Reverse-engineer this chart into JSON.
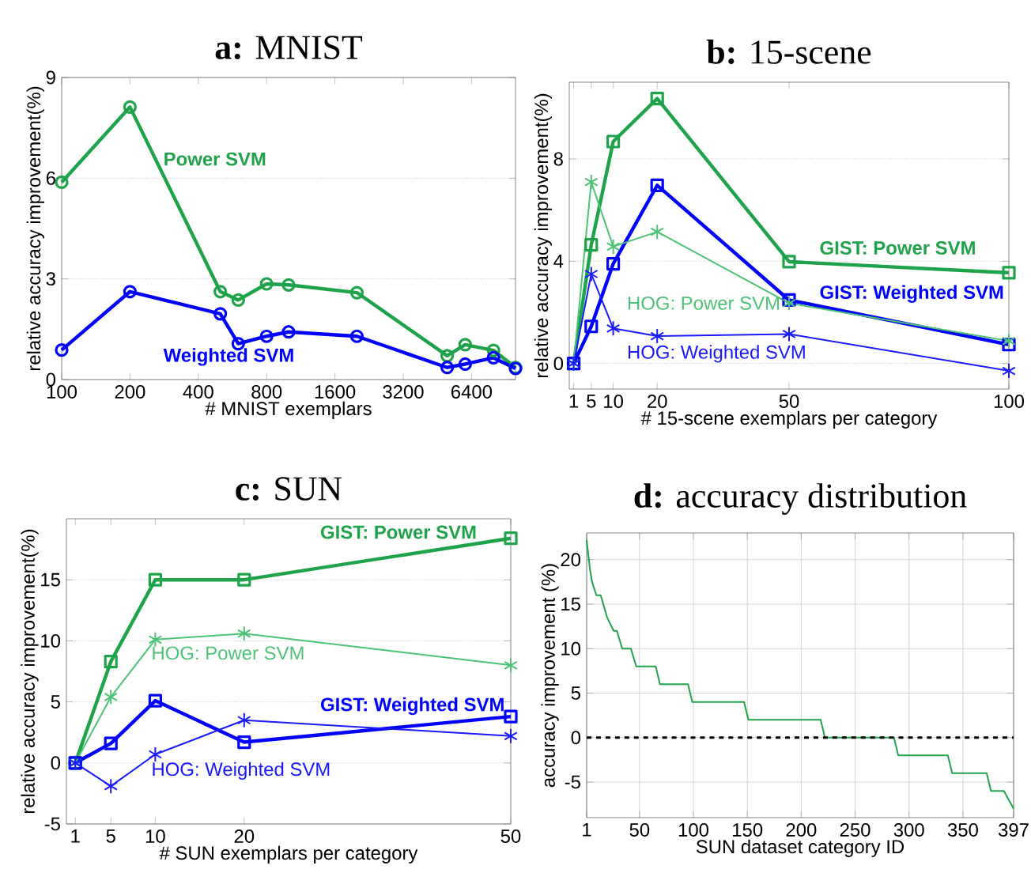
{
  "chart_data": [
    {
      "type": "line",
      "title": "**a:** MNIST",
      "xlabel": "# MNIST exemplars",
      "ylabel": "relative accuracy improvement(%)",
      "log": "x",
      "grid": "y",
      "marker": "circle",
      "x": [
        100,
        200,
        500,
        600,
        800,
        1000,
        2000,
        5000,
        6000,
        8000,
        10000
      ],
      "xlim": [
        100,
        10000
      ],
      "xticks": [
        100,
        200,
        400,
        800,
        1600,
        3200,
        6400
      ],
      "ylim": [
        0,
        9
      ],
      "yticks": [
        0,
        3,
        6,
        9
      ],
      "series": [
        {
          "name": "Power SVM",
          "color": "#1fa34a",
          "values": [
            5.88,
            8.12,
            2.62,
            2.37,
            2.85,
            2.82,
            2.59,
            0.71,
            1.04,
            0.87,
            0.36
          ]
        },
        {
          "name": "Weighted SVM",
          "color": "#0000ff",
          "values": [
            0.88,
            2.62,
            1.96,
            1.07,
            1.29,
            1.42,
            1.29,
            0.36,
            0.46,
            0.65,
            0.33
          ]
        }
      ]
    },
    {
      "type": "line",
      "title": "**b:** 15-scene",
      "xlabel": "# 15-scene exemplars per category",
      "ylabel": "relative accuracy improvement(%)",
      "grid": "y",
      "x": [
        1,
        5,
        10,
        20,
        50,
        100
      ],
      "xlim": [
        0,
        100
      ],
      "xticks": [
        1,
        5,
        10,
        20,
        50,
        100
      ],
      "ylim": [
        -1,
        11
      ],
      "yticks": [
        0,
        4,
        8
      ],
      "series": [
        {
          "name": "GIST: Power SVM",
          "color": "#1fa34a",
          "marker": "square",
          "values": [
            0,
            4.64,
            8.68,
            10.36,
            3.98,
            3.55
          ]
        },
        {
          "name": "GIST: Weighted SVM",
          "color": "#0000ff",
          "marker": "square",
          "values": [
            0,
            1.45,
            3.9,
            6.97,
            2.48,
            0.74
          ]
        },
        {
          "name": "HOG: Power SVM",
          "color": "#4cc276",
          "marker": "cross",
          "values": [
            0,
            7.1,
            4.57,
            5.15,
            2.36,
            0.88
          ]
        },
        {
          "name": "HOG: Weighted SVM",
          "color": "#1a1aff",
          "marker": "cross",
          "values": [
            0,
            3.5,
            1.37,
            1.07,
            1.15,
            -0.29
          ]
        }
      ]
    },
    {
      "type": "line",
      "title": "**c:** SUN",
      "xlabel": "# SUN exemplars per category",
      "ylabel": "relative accuracy improvement(%)",
      "grid": "y",
      "x": [
        1,
        5,
        10,
        20,
        50
      ],
      "xlim": [
        0,
        50
      ],
      "xticks": [
        1,
        5,
        10,
        20,
        50
      ],
      "ylim": [
        -5,
        20
      ],
      "yticks": [
        -5,
        0,
        5,
        10,
        15
      ],
      "series": [
        {
          "name": "GIST: Power SVM",
          "color": "#1fa34a",
          "marker": "square",
          "values": [
            0,
            8.3,
            15,
            15,
            18.4
          ]
        },
        {
          "name": "GIST: Weighted SVM",
          "color": "#0000ff",
          "marker": "square",
          "values": [
            0,
            1.6,
            5.1,
            1.7,
            3.8
          ]
        },
        {
          "name": "HOG: Power SVM",
          "color": "#4cc276",
          "marker": "cross",
          "values": [
            0,
            5.4,
            10.1,
            10.6,
            8
          ]
        },
        {
          "name": "HOG: Weighted SVM",
          "color": "#1a1aff",
          "marker": "cross",
          "values": [
            0,
            -1.9,
            0.7,
            3.5,
            2.2
          ]
        }
      ]
    },
    {
      "type": "line",
      "title": "**d:** accuracy distribution",
      "xlabel": "SUN dataset category ID",
      "ylabel": "accuracy  improvement (%)",
      "grid": true,
      "x": [
        1,
        4,
        6,
        10,
        14,
        20,
        26,
        29,
        34,
        42,
        47,
        65,
        69,
        95,
        99,
        147,
        151,
        218,
        222,
        286,
        290,
        336,
        340,
        372,
        376,
        388,
        397
      ],
      "xlim": [
        1,
        397
      ],
      "xticks": [
        1,
        50,
        100,
        150,
        200,
        250,
        300,
        350,
        397
      ],
      "ylim": [
        -9,
        23
      ],
      "yticks": [
        -5,
        0,
        5,
        10,
        15,
        20
      ],
      "ref_lines": [
        {
          "axis": "y",
          "value": 0,
          "color": "#000000",
          "line_style": "dashed"
        }
      ],
      "series": [
        {
          "color": "#1fa34a",
          "values": [
            22.2,
            19,
            17.5,
            16,
            16,
            13.5,
            12,
            12,
            10,
            10,
            8,
            8,
            6,
            6,
            4,
            4,
            2,
            2,
            0,
            0,
            -2,
            -2,
            -4,
            -4,
            -6,
            -6,
            -8
          ]
        }
      ]
    }
  ]
}
